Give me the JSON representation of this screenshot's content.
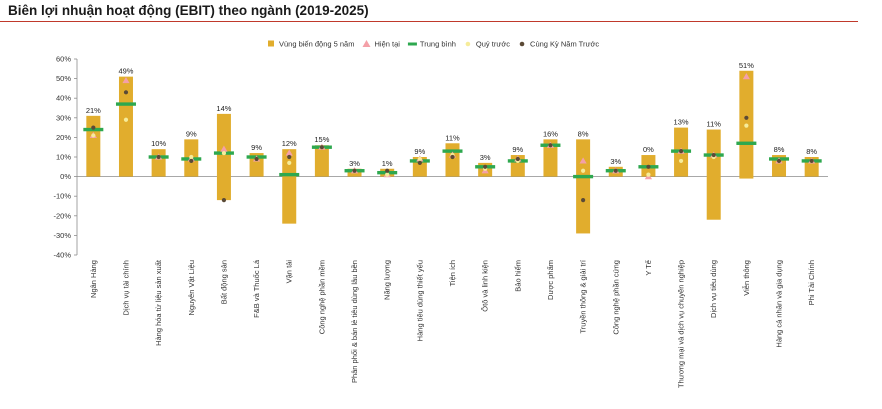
{
  "chart_data": {
    "type": "bar",
    "title": "Biên lợi nhuận hoạt động (EBIT) theo ngành (2019-2025)",
    "ylim": [
      -40,
      60
    ],
    "yticks": [
      -40,
      -30,
      -20,
      -10,
      0,
      10,
      20,
      30,
      40,
      50,
      60
    ],
    "y_unit": "%",
    "grid": false,
    "legend_position": "top-right",
    "legend": [
      {
        "key": "range",
        "label": "Vùng biến động 5 năm",
        "color": "#e1ad2d",
        "shape": "square"
      },
      {
        "key": "current",
        "label": "Hiện tại",
        "color": "#f4a0a8",
        "shape": "triangle"
      },
      {
        "key": "average",
        "label": "Trung bình",
        "color": "#2ea84f",
        "shape": "dash"
      },
      {
        "key": "prev_q",
        "label": "Quý trước",
        "color": "#f6ec9a",
        "shape": "dot"
      },
      {
        "key": "same_q_ly",
        "label": "Cùng Kỳ Năm Trước",
        "color": "#5b4a36",
        "shape": "dot"
      }
    ],
    "categories": [
      "Ngân Hàng",
      "Dịch vụ tài chính",
      "Hàng hóa từ liệu sản xuất",
      "Nguyên Vật Liệu",
      "Bất động sản",
      "F&B và Thuốc Lá",
      "Vận tải",
      "Công nghệ phần mềm",
      "Phân phối & bán lẻ tiêu dùng lâu bền",
      "Năng lượng",
      "Hàng tiêu dùng thiết yếu",
      "Tiện ích",
      "Ôtô và linh kiện",
      "Bảo hiểm",
      "Dược phẩm",
      "Truyền thông & giải trí",
      "Công nghệ phần cứng",
      "Y Tế",
      "Thương mại và dịch vụ chuyên nghiệp",
      "Dịch vụ tiêu dùng",
      "Viễn thông",
      "Hàng cá nhân và gia dụng",
      "Phi Tài Chính"
    ],
    "labels": [
      "21%",
      "49%",
      "10%",
      "9%",
      "14%",
      "9%",
      "12%",
      "15%",
      "3%",
      "1%",
      "9%",
      "11%",
      "3%",
      "9%",
      "16%",
      "8%",
      "3%",
      "0%",
      "13%",
      "11%",
      "51%",
      "8%",
      "8%"
    ],
    "range_min": [
      0,
      0,
      0,
      0,
      -12,
      0,
      -24,
      0,
      0,
      0,
      0,
      0,
      0,
      0,
      0,
      -29,
      0,
      0,
      0,
      -22,
      -1,
      0,
      0
    ],
    "range_max": [
      31,
      51,
      14,
      19,
      32,
      12,
      14,
      16,
      4,
      4,
      10,
      17,
      7,
      11,
      19,
      19,
      5,
      11,
      25,
      24,
      54,
      11,
      10
    ],
    "current": [
      21,
      49,
      10,
      9,
      14,
      9,
      12,
      15,
      3,
      1,
      9,
      11,
      3,
      9,
      16,
      8,
      3,
      0,
      13,
      11,
      51,
      8,
      8
    ],
    "average": [
      24,
      37,
      10,
      9,
      12,
      10,
      1,
      15,
      3,
      2,
      8,
      13,
      5,
      8,
      16,
      0,
      3,
      5,
      13,
      11,
      17,
      9,
      8
    ],
    "prev_q": [
      21,
      29,
      10,
      10,
      12,
      9,
      7,
      15,
      3,
      1,
      9,
      11,
      4,
      8,
      16,
      3,
      3,
      1,
      8,
      10,
      26,
      8,
      8
    ],
    "same_q_ly": [
      25,
      43,
      10,
      8,
      -12,
      9,
      10,
      15,
      3,
      3,
      7,
      10,
      5,
      9,
      16,
      -12,
      3,
      5,
      13,
      11,
      30,
      8,
      8
    ]
  }
}
